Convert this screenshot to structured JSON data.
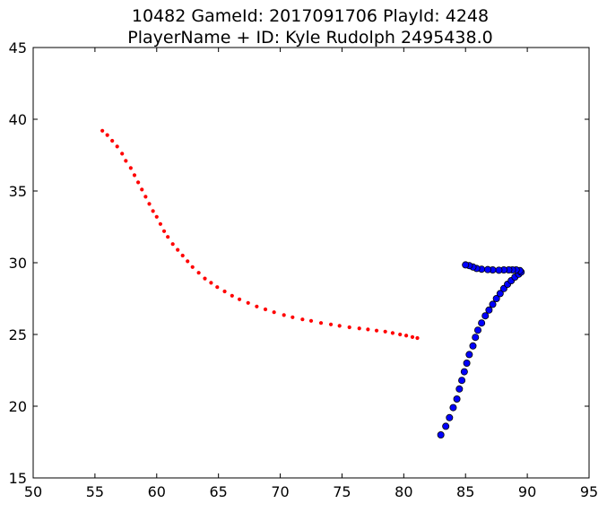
{
  "chart_data": {
    "type": "scatter",
    "title": "10482 GameId: 2017091706 PlayId: 4248",
    "subtitle": "PlayerName + ID: Kyle Rudolph 2495438.0",
    "xlabel": "",
    "ylabel": "",
    "xlim": [
      50,
      95
    ],
    "ylim": [
      15,
      45
    ],
    "x_ticks": [
      "50",
      "55",
      "60",
      "65",
      "70",
      "75",
      "80",
      "85",
      "90",
      "95"
    ],
    "y_ticks": [
      "15",
      "20",
      "25",
      "30",
      "35",
      "40",
      "45"
    ],
    "grid": false,
    "series": [
      {
        "color": "#ff0000",
        "marker": "small-dot",
        "points": [
          [
            55.6,
            39.2
          ],
          [
            56.0,
            38.9
          ],
          [
            56.4,
            38.5
          ],
          [
            56.8,
            38.1
          ],
          [
            57.2,
            37.6
          ],
          [
            57.5,
            37.1
          ],
          [
            57.9,
            36.6
          ],
          [
            58.2,
            36.1
          ],
          [
            58.5,
            35.6
          ],
          [
            58.8,
            35.1
          ],
          [
            59.1,
            34.6
          ],
          [
            59.4,
            34.1
          ],
          [
            59.7,
            33.6
          ],
          [
            60.0,
            33.2
          ],
          [
            60.3,
            32.7
          ],
          [
            60.6,
            32.2
          ],
          [
            60.9,
            31.8
          ],
          [
            61.3,
            31.3
          ],
          [
            61.7,
            30.9
          ],
          [
            62.1,
            30.5
          ],
          [
            62.5,
            30.1
          ],
          [
            62.9,
            29.7
          ],
          [
            63.4,
            29.3
          ],
          [
            63.9,
            28.9
          ],
          [
            64.4,
            28.6
          ],
          [
            64.9,
            28.3
          ],
          [
            65.5,
            28.0
          ],
          [
            66.1,
            27.7
          ],
          [
            66.7,
            27.45
          ],
          [
            67.4,
            27.2
          ],
          [
            68.1,
            26.95
          ],
          [
            68.8,
            26.75
          ],
          [
            69.5,
            26.55
          ],
          [
            70.3,
            26.35
          ],
          [
            71.0,
            26.2
          ],
          [
            71.8,
            26.05
          ],
          [
            72.5,
            25.95
          ],
          [
            73.3,
            25.8
          ],
          [
            74.1,
            25.7
          ],
          [
            74.8,
            25.6
          ],
          [
            75.6,
            25.5
          ],
          [
            76.4,
            25.42
          ],
          [
            77.1,
            25.35
          ],
          [
            77.8,
            25.27
          ],
          [
            78.5,
            25.2
          ],
          [
            79.1,
            25.1
          ],
          [
            79.7,
            25.0
          ],
          [
            80.2,
            24.92
          ],
          [
            80.7,
            24.82
          ],
          [
            81.1,
            24.75
          ]
        ]
      },
      {
        "color": "#0000ff",
        "marker": "circle",
        "points": [
          [
            83.0,
            18.0
          ],
          [
            83.4,
            18.6
          ],
          [
            83.7,
            19.2
          ],
          [
            84.0,
            19.9
          ],
          [
            84.3,
            20.5
          ],
          [
            84.5,
            21.2
          ],
          [
            84.7,
            21.8
          ],
          [
            84.9,
            22.4
          ],
          [
            85.1,
            23.0
          ],
          [
            85.3,
            23.6
          ],
          [
            85.6,
            24.2
          ],
          [
            85.8,
            24.8
          ],
          [
            86.0,
            25.3
          ],
          [
            86.3,
            25.8
          ],
          [
            86.6,
            26.3
          ],
          [
            86.9,
            26.7
          ],
          [
            87.2,
            27.1
          ],
          [
            87.5,
            27.5
          ],
          [
            87.8,
            27.85
          ],
          [
            88.1,
            28.2
          ],
          [
            88.4,
            28.5
          ],
          [
            88.7,
            28.75
          ],
          [
            89.0,
            29.0
          ],
          [
            89.3,
            29.2
          ],
          [
            89.5,
            29.35
          ],
          [
            89.4,
            29.45
          ],
          [
            89.1,
            29.5
          ],
          [
            88.8,
            29.5
          ],
          [
            88.5,
            29.5
          ],
          [
            88.1,
            29.5
          ],
          [
            87.7,
            29.48
          ],
          [
            87.2,
            29.5
          ],
          [
            86.8,
            29.52
          ],
          [
            86.3,
            29.55
          ],
          [
            85.9,
            29.6
          ],
          [
            85.6,
            29.7
          ],
          [
            85.3,
            29.8
          ],
          [
            85.0,
            29.85
          ]
        ]
      }
    ]
  }
}
